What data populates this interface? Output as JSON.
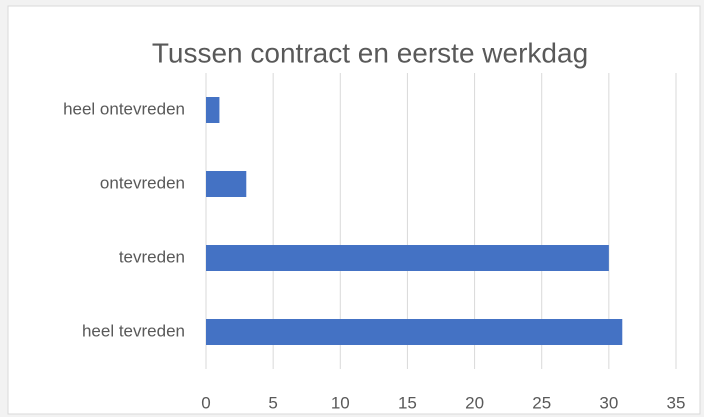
{
  "chart_data": {
    "type": "hbar",
    "title": "Tussen contract en eerste werkdag",
    "categories": [
      "heel ontevreden",
      "ontevreden",
      "tevreden",
      "heel tevreden"
    ],
    "values": [
      1,
      3,
      30,
      31
    ],
    "color": "#4472c4",
    "xlim": [
      0,
      35
    ],
    "xticks": [
      0,
      5,
      10,
      15,
      20,
      25,
      30,
      35
    ],
    "grid": true
  }
}
